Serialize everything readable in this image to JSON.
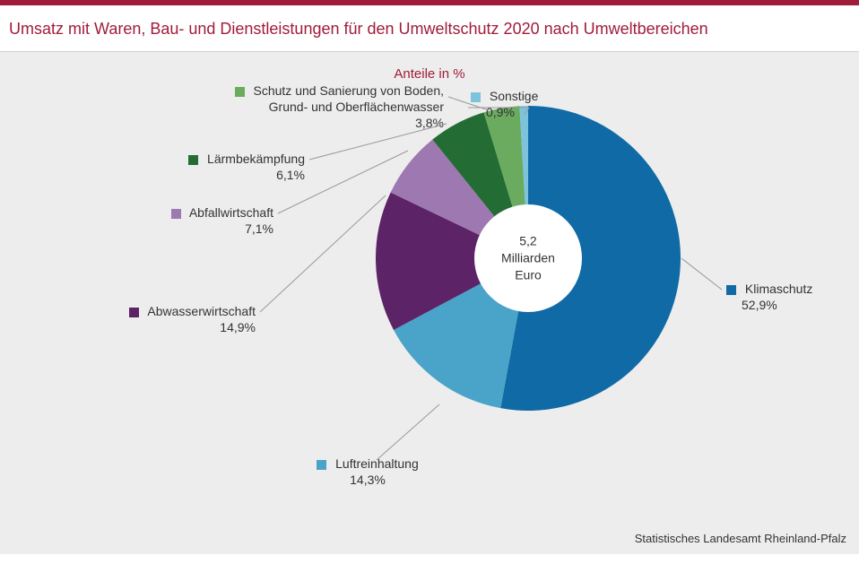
{
  "title": "Umsatz mit Waren, Bau- und Dienstleistungen für den Umweltschutz 2020 nach Umweltbereichen",
  "subtitle": "Anteile in %",
  "source": "Statistisches Landesamt Rheinland-Pfalz",
  "chart": {
    "type": "donut",
    "start_angle_deg": 0,
    "direction": "clockwise",
    "inner_radius_pct": 35,
    "outer_radius_pct": 100,
    "background_color": "#ededed",
    "center_text": [
      "5,2",
      "Milliarden",
      "Euro"
    ],
    "center_fontsize": 14,
    "label_fontsize": 14,
    "slices": [
      {
        "label": "Klimaschutz",
        "value": 52.9,
        "pct_text": "52,9%",
        "color": "#0f6aa6"
      },
      {
        "label": "Luftreinhaltung",
        "value": 14.3,
        "pct_text": "14,3%",
        "color": "#4aa3c9"
      },
      {
        "label": "Abwasserwirtschaft",
        "value": 14.9,
        "pct_text": "14,9%",
        "color": "#5c2367"
      },
      {
        "label": "Abfallwirtschaft",
        "value": 7.1,
        "pct_text": "7,1%",
        "color": "#9d78b1"
      },
      {
        "label": "Lärmbekämpfung",
        "value": 6.1,
        "pct_text": "6,1%",
        "color": "#236c34"
      },
      {
        "label": "Schutz und Sanierung von Boden, Grund- und Oberflächenwasser",
        "value": 3.8,
        "pct_text": "3,8%",
        "color": "#6aab5f"
      },
      {
        "label": "Sonstige",
        "value": 0.9,
        "pct_text": "0,9%",
        "color": "#7ec3dc"
      }
    ]
  },
  "labels": {
    "klimaschutz": {
      "text": "Klimaschutz",
      "pct": "52,9%"
    },
    "luftreinhaltung": {
      "text": "Luftreinhaltung",
      "pct": "14,3%"
    },
    "abwasser": {
      "text": "Abwasserwirtschaft",
      "pct": "14,9%"
    },
    "abfall": {
      "text": "Abfallwirtschaft",
      "pct": "7,1%"
    },
    "laerm": {
      "text": "Lärmbekämpfung",
      "pct": "6,1%"
    },
    "boden_line1": "Schutz und Sanierung von Boden,",
    "boden_line2": "Grund- und Oberflächenwasser",
    "boden_pct": "3,8%",
    "sonstige": {
      "text": "Sonstige",
      "pct": "0,9%"
    }
  }
}
